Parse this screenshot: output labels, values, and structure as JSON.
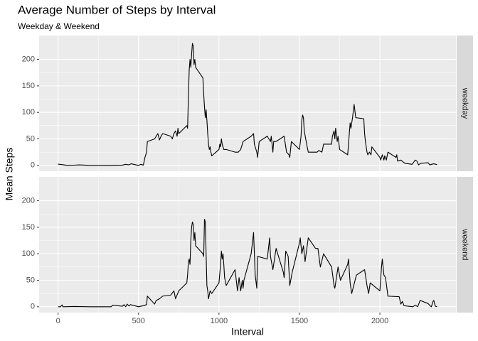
{
  "title": "Average Number of Steps by Interval",
  "subtitle": "Weekday & Weekend",
  "x_label": "Interval",
  "y_label": "Mean Steps",
  "chart_data": [
    {
      "type": "line",
      "panel_label": "weekday",
      "color": "#000000",
      "grid": true,
      "xlim": [
        -117.75,
        2472.75
      ],
      "xticks": [
        0,
        500,
        1000,
        1500,
        2000
      ],
      "ylim": [
        -11,
        245
      ],
      "yticks": [
        0,
        50,
        100,
        150,
        200
      ],
      "x": [
        0,
        25,
        50,
        100,
        130,
        200,
        300,
        400,
        420,
        440,
        455,
        500,
        515,
        530,
        540,
        550,
        555,
        600,
        610,
        620,
        630,
        640,
        650,
        700,
        710,
        720,
        730,
        740,
        745,
        750,
        800,
        805,
        810,
        815,
        820,
        825,
        830,
        835,
        840,
        845,
        850,
        855,
        900,
        905,
        910,
        915,
        920,
        925,
        930,
        935,
        940,
        945,
        950,
        955,
        1000,
        1005,
        1010,
        1015,
        1020,
        1030,
        1045,
        1100,
        1120,
        1135,
        1150,
        1200,
        1215,
        1220,
        1235,
        1240,
        1250,
        1300,
        1310,
        1320,
        1325,
        1335,
        1340,
        1355,
        1405,
        1420,
        1435,
        1440,
        1450,
        1500,
        1510,
        1515,
        1520,
        1525,
        1530,
        1545,
        1555,
        1610,
        1620,
        1640,
        1650,
        1700,
        1705,
        1715,
        1720,
        1725,
        1735,
        1740,
        1750,
        1800,
        1810,
        1815,
        1820,
        1830,
        1840,
        1850,
        1900,
        1905,
        1910,
        1920,
        1925,
        1935,
        1945,
        1950,
        2000,
        2005,
        2015,
        2025,
        2030,
        2040,
        2050,
        2100,
        2105,
        2110,
        2130,
        2155,
        2200,
        2215,
        2220,
        2230,
        2240,
        2255,
        2300,
        2310,
        2335,
        2355
      ],
      "values": [
        2.3,
        1.5,
        0.3,
        0.4,
        1,
        0,
        0,
        0.5,
        2,
        1,
        3,
        0,
        2,
        0.5,
        15,
        25,
        45,
        50,
        55,
        60,
        48,
        55,
        60,
        55,
        50,
        60,
        65,
        55,
        70,
        60,
        75,
        70,
        130,
        180,
        200,
        185,
        210,
        230,
        225,
        190,
        200,
        185,
        165,
        135,
        110,
        90,
        105,
        85,
        60,
        40,
        30,
        35,
        25,
        18,
        30,
        40,
        35,
        50,
        40,
        30,
        30,
        25,
        25,
        30,
        45,
        55,
        60,
        40,
        25,
        15,
        45,
        55,
        50,
        45,
        55,
        25,
        45,
        45,
        55,
        25,
        20,
        15,
        45,
        30,
        55,
        85,
        95,
        90,
        65,
        40,
        25,
        25,
        28,
        25,
        40,
        40,
        55,
        65,
        50,
        70,
        45,
        55,
        30,
        20,
        60,
        80,
        70,
        90,
        115,
        90,
        88,
        60,
        45,
        25,
        20,
        25,
        20,
        35,
        15,
        10,
        20,
        10,
        18,
        10,
        25,
        15,
        20,
        8,
        10,
        4,
        2,
        8,
        10,
        8,
        1,
        4,
        5,
        1,
        3,
        1.5
      ]
    },
    {
      "type": "line",
      "panel_label": "weekend",
      "color": "#000000",
      "grid": true,
      "xlim": [
        -117.75,
        2472.75
      ],
      "xticks": [
        0,
        500,
        1000,
        1500,
        2000
      ],
      "ylim": [
        -11,
        245
      ],
      "yticks": [
        0,
        50,
        100,
        150,
        200
      ],
      "x": [
        0,
        15,
        25,
        30,
        100,
        200,
        330,
        340,
        400,
        410,
        420,
        430,
        440,
        450,
        500,
        530,
        550,
        555,
        600,
        610,
        630,
        650,
        700,
        720,
        730,
        750,
        800,
        805,
        810,
        815,
        820,
        825,
        830,
        835,
        840,
        845,
        850,
        855,
        900,
        905,
        910,
        915,
        920,
        925,
        930,
        935,
        945,
        955,
        1000,
        1010,
        1015,
        1020,
        1025,
        1030,
        1035,
        1045,
        1100,
        1115,
        1125,
        1135,
        1145,
        1150,
        1155,
        1200,
        1215,
        1225,
        1235,
        1240,
        1300,
        1315,
        1320,
        1335,
        1355,
        1400,
        1405,
        1415,
        1430,
        1440,
        1455,
        1500,
        1505,
        1515,
        1525,
        1535,
        1555,
        1600,
        1615,
        1630,
        1650,
        1700,
        1715,
        1720,
        1740,
        1755,
        1800,
        1805,
        1815,
        1825,
        1850,
        1855,
        1905,
        1920,
        1930,
        1940,
        2000,
        2010,
        2015,
        2025,
        2035,
        2050,
        2120,
        2125,
        2130,
        2140,
        2150,
        2205,
        2220,
        2235,
        2250,
        2300,
        2315,
        2320,
        2330,
        2335,
        2340,
        2345,
        2355
      ],
      "values": [
        0,
        0,
        3.5,
        0,
        0.5,
        0,
        0,
        3,
        1,
        4,
        0,
        5,
        1.5,
        4,
        0,
        2,
        4,
        20,
        5,
        12,
        15,
        20,
        22,
        30,
        15,
        30,
        45,
        60,
        85,
        90,
        80,
        125,
        150,
        160,
        155,
        125,
        140,
        115,
        100,
        95,
        165,
        160,
        100,
        40,
        30,
        15,
        30,
        25,
        45,
        80,
        105,
        90,
        100,
        80,
        55,
        40,
        70,
        30,
        55,
        30,
        50,
        35,
        50,
        100,
        140,
        60,
        35,
        95,
        90,
        130,
        95,
        70,
        110,
        65,
        55,
        105,
        95,
        40,
        65,
        120,
        130,
        100,
        115,
        85,
        130,
        110,
        110,
        75,
        100,
        75,
        40,
        35,
        75,
        50,
        80,
        90,
        45,
        25,
        55,
        60,
        70,
        40,
        25,
        45,
        30,
        75,
        90,
        60,
        55,
        20,
        19,
        12,
        5,
        10,
        2,
        0,
        3,
        0,
        12,
        6,
        1,
        0,
        10,
        12,
        6,
        1,
        0
      ]
    }
  ]
}
